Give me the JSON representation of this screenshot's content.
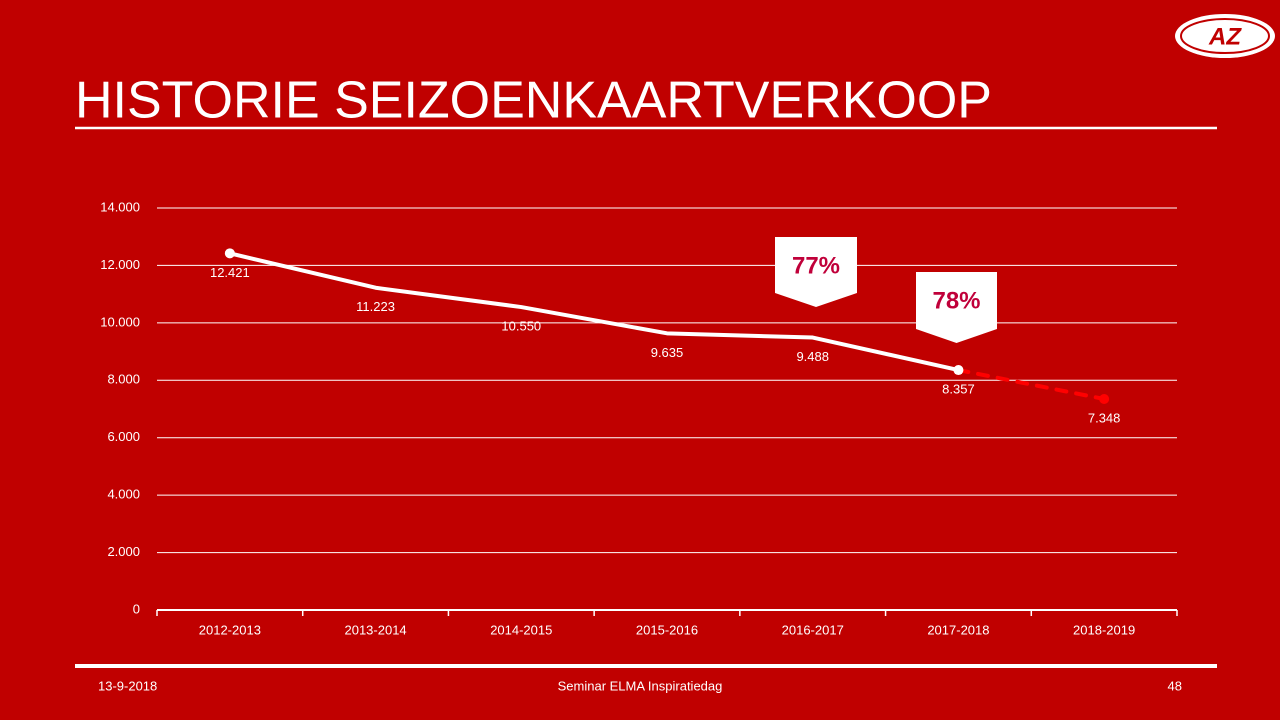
{
  "logo": "AZ",
  "chart_data": {
    "type": "line",
    "title": "HISTORIE SEIZOENKAARTVERKOOP",
    "categories": [
      "2012-2013",
      "2013-2014",
      "2014-2015",
      "2015-2016",
      "2016-2017",
      "2017-2018",
      "2018-2019"
    ],
    "series": [
      {
        "color": "#ffffff",
        "dashed": false,
        "values": [
          12421,
          11223,
          10550,
          9635,
          9488,
          8357,
          null
        ],
        "value_labels": [
          "12.421",
          "11.223",
          "10.550",
          "9.635",
          "9.488",
          "8.357",
          null
        ]
      },
      {
        "color": "#ff0000",
        "dashed": true,
        "values": [
          null,
          null,
          null,
          null,
          null,
          8357,
          7348
        ],
        "value_labels": [
          null,
          null,
          null,
          null,
          null,
          null,
          "7.348"
        ]
      }
    ],
    "annotations": [
      "77%",
      "78%"
    ],
    "ylim": [
      0,
      14000
    ],
    "yticks": [
      0,
      {
        "value": 2000,
        "label": "2.000"
      },
      {
        "value": 4000,
        "label": "4.000"
      },
      {
        "value": 6000,
        "label": "6.000"
      },
      {
        "value": 8000,
        "label": "8.000"
      },
      {
        "value": 10000,
        "label": "10.000"
      },
      {
        "value": 12000,
        "label": "12.000"
      },
      {
        "value": 14000,
        "label": "14.000"
      }
    ],
    "grid": true
  },
  "footer": {
    "date": "13-9-2018",
    "event": "Seminar ELMA Inspiratiedag",
    "page": "48"
  }
}
